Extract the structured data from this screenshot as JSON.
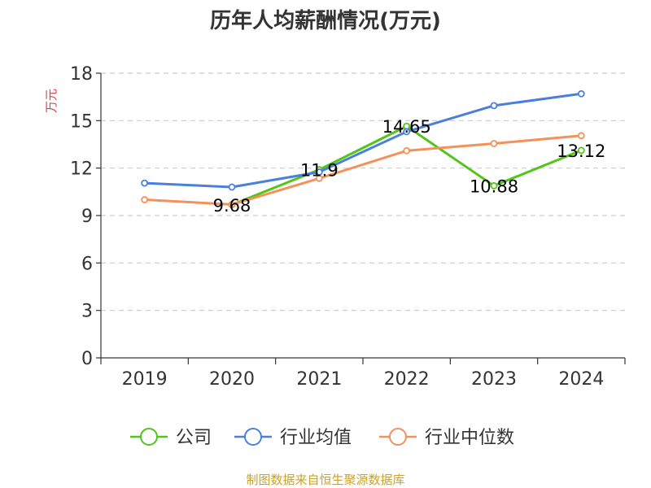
{
  "chart_data": {
    "type": "line",
    "title": "历年人均薪酬情况(万元)",
    "ylabel": "万元",
    "categories": [
      "2019",
      "2020",
      "2021",
      "2022",
      "2023",
      "2024"
    ],
    "ylim": [
      0,
      18
    ],
    "yticks": [
      0,
      3,
      6,
      9,
      12,
      15,
      18
    ],
    "grid": true,
    "legend_position": "bottom",
    "series": [
      {
        "name": "公司",
        "color": "#52c41a",
        "values": [
          null,
          9.68,
          11.9,
          14.65,
          10.88,
          13.12
        ],
        "labels": [
          null,
          "9.68",
          "11.9",
          "14.65",
          "10.88",
          "13.12"
        ]
      },
      {
        "name": "行业均值",
        "color": "#4a7fdb",
        "values": [
          11.05,
          10.8,
          11.75,
          14.3,
          15.95,
          16.7
        ]
      },
      {
        "name": "行业中位数",
        "color": "#f4915a",
        "values": [
          10.0,
          9.7,
          11.35,
          13.1,
          13.55,
          14.05
        ]
      }
    ]
  },
  "source_text": "制图数据来自恒生聚源数据库",
  "colors": {
    "ylabel": "#e03c3c",
    "source": "#c9a227",
    "grid": "#cccccc",
    "axis": "#333333"
  }
}
